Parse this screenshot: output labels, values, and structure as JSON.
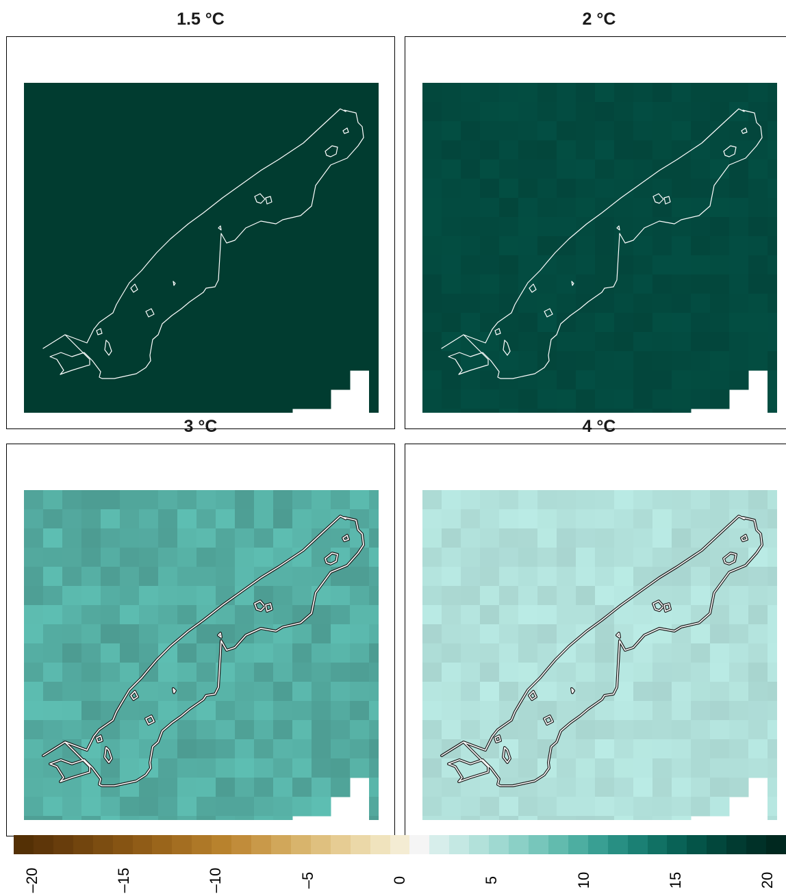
{
  "panels": [
    {
      "title": "1.5 °C",
      "base": "#013c30",
      "variation": 0.0,
      "outline": "white",
      "seed": 11
    },
    {
      "title": "2 °C",
      "base": "#034a3f",
      "variation": 0.06,
      "outline": "white",
      "seed": 23
    },
    {
      "title": "3 °C",
      "base": "#55ada2",
      "variation": 0.1,
      "outline": "double-black",
      "seed": 37
    },
    {
      "title": "4 °C",
      "base": "#b1e0da",
      "variation": 0.05,
      "outline": "double-black",
      "seed": 51
    }
  ],
  "colorbar": {
    "ticks": [
      "–20",
      "–15",
      "–10",
      "–5",
      "0",
      "5",
      "10",
      "15",
      "20"
    ],
    "range": [
      -21,
      21
    ],
    "colors": [
      "#543005",
      "#5e3609",
      "#683d0c",
      "#72450e",
      "#7c4d11",
      "#865413",
      "#905c17",
      "#9a651b",
      "#a46e21",
      "#ae7827",
      "#b8822d",
      "#c18c3a",
      "#c99949",
      "#d1a75a",
      "#d8b46c",
      "#dfc07f",
      "#e6cc93",
      "#ebd8a8",
      "#f0e3bd",
      "#f4ecd3",
      "#f5f5f5",
      "#d7eeeb",
      "#c4e8e3",
      "#b2e1da",
      "#9fd9d1",
      "#8bd0c6",
      "#77c6bb",
      "#62bbae",
      "#4daea1",
      "#399f93",
      "#288f83",
      "#1b8074",
      "#117164",
      "#096256",
      "#045448",
      "#02473c",
      "#013b31",
      "#003128",
      "#00281f"
    ]
  }
}
